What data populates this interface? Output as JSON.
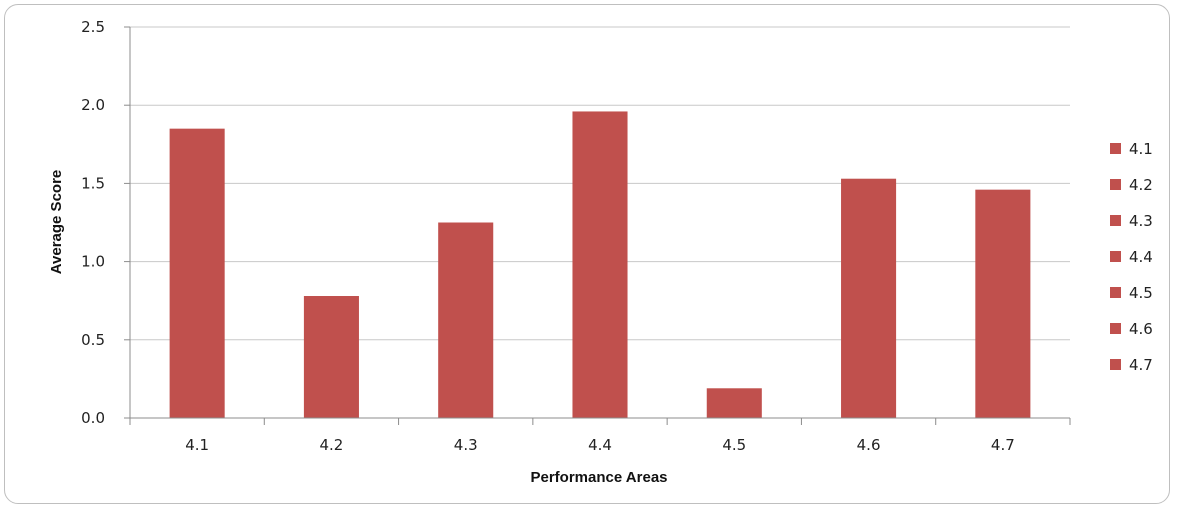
{
  "chart_data": {
    "type": "bar",
    "title": "",
    "xlabel": "Performance Areas",
    "ylabel": "Average Score",
    "categories": [
      "4.1",
      "4.2",
      "4.3",
      "4.4",
      "4.5",
      "4.6",
      "4.7"
    ],
    "values": [
      1.85,
      0.78,
      1.25,
      1.96,
      0.19,
      1.53,
      1.46
    ],
    "ylim": [
      0,
      2.5
    ],
    "yticks": [
      "0.0",
      "0.5",
      "1.0",
      "1.5",
      "2.0",
      "2.5"
    ],
    "grid": true,
    "legend": {
      "placement": "right",
      "entries": [
        "4.1",
        "4.2",
        "4.3",
        "4.4",
        "4.5",
        "4.6",
        "4.7"
      ]
    },
    "bar_color": "#c0504d",
    "grid_color": "#c8c8c8"
  }
}
